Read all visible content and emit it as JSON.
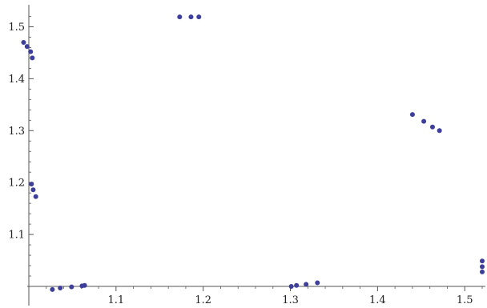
{
  "chart_data": {
    "type": "scatter",
    "title": "",
    "xlabel": "",
    "ylabel": "",
    "xlim": [
      1.0,
      1.52
    ],
    "ylim": [
      1.0,
      1.53
    ],
    "axis_origin": [
      1.0,
      1.0
    ],
    "grid": false,
    "x_ticks": [
      {
        "value": 1.1,
        "label": "1.1"
      },
      {
        "value": 1.2,
        "label": "1.2"
      },
      {
        "value": 1.3,
        "label": "1.3"
      },
      {
        "value": 1.4,
        "label": "1.4"
      },
      {
        "value": 1.5,
        "label": "1.5"
      }
    ],
    "y_ticks": [
      {
        "value": 1.1,
        "label": "1.1"
      },
      {
        "value": 1.2,
        "label": "1.2"
      },
      {
        "value": 1.3,
        "label": "1.3"
      },
      {
        "value": 1.4,
        "label": "1.4"
      },
      {
        "value": 1.5,
        "label": "1.5"
      }
    ],
    "series": [
      {
        "color": "#3d3f9a",
        "points": [
          [
            0.994,
            1.47
          ],
          [
            0.998,
            1.462
          ],
          [
            1.002,
            1.452
          ],
          [
            1.004,
            1.44
          ],
          [
            1.003,
            1.197
          ],
          [
            1.005,
            1.186
          ],
          [
            1.008,
            1.173
          ],
          [
            1.027,
            0.994
          ],
          [
            1.036,
            0.997
          ],
          [
            1.049,
            0.999
          ],
          [
            1.061,
            1.001
          ],
          [
            1.064,
            1.002
          ],
          [
            1.173,
            1.519
          ],
          [
            1.186,
            1.519
          ],
          [
            1.195,
            1.519
          ],
          [
            1.301,
            1.0
          ],
          [
            1.307,
            1.002
          ],
          [
            1.318,
            1.004
          ],
          [
            1.331,
            1.007
          ],
          [
            1.44,
            1.331
          ],
          [
            1.453,
            1.318
          ],
          [
            1.463,
            1.307
          ],
          [
            1.471,
            1.3
          ],
          [
            1.52,
            1.049
          ],
          [
            1.52,
            1.038
          ],
          [
            1.52,
            1.028
          ]
        ]
      }
    ]
  }
}
